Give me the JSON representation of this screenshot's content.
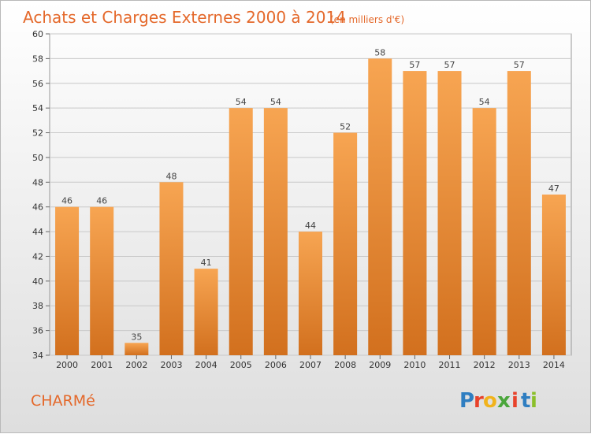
{
  "chart_data": {
    "type": "bar",
    "title": "Achats et Charges Externes 2000 à 2014",
    "subtitle": "(en milliers d'€)",
    "categories": [
      "2000",
      "2001",
      "2002",
      "2003",
      "2004",
      "2005",
      "2006",
      "2007",
      "2008",
      "2009",
      "2010",
      "2011",
      "2012",
      "2013",
      "2014"
    ],
    "values": [
      46,
      46,
      35,
      48,
      41,
      54,
      54,
      44,
      52,
      58,
      57,
      57,
      54,
      57,
      47
    ],
    "ylim": [
      34,
      60
    ],
    "yticks": [
      34,
      36,
      38,
      40,
      42,
      44,
      46,
      48,
      50,
      52,
      54,
      56,
      58,
      60
    ],
    "grid": true,
    "bar_color": "#f0913a"
  },
  "commune": "CHARMé",
  "logo": {
    "letters": [
      "P",
      "r",
      "o",
      "x",
      "i",
      "t",
      "i"
    ],
    "colors": [
      "#2f7ec1",
      "#e8422b",
      "#f1b31c",
      "#4aa63b",
      "#e8422b",
      "#2f7ec1",
      "#8bbf2b"
    ]
  }
}
